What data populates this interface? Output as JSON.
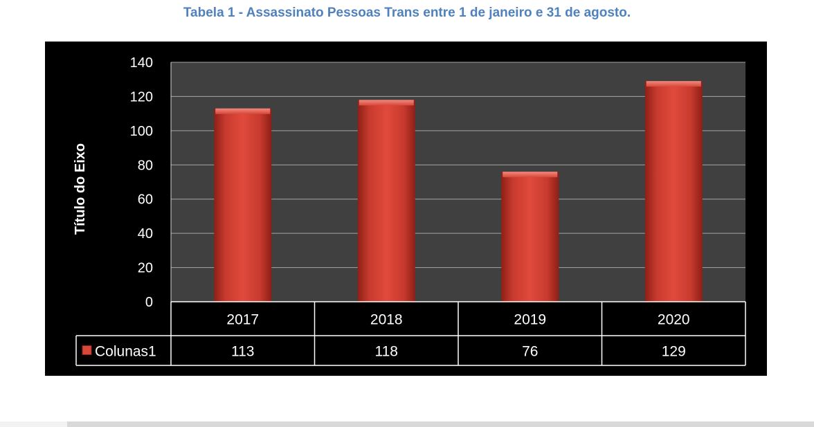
{
  "caption": "Tabela 1 - Assassinato Pessoas Trans entre 1 de janeiro e 31 de agosto.",
  "colors": {
    "caption": "#4f81bd",
    "bar": "#c0392b",
    "background": "#000000",
    "plot_area": "#404040",
    "text": "#ffffff"
  },
  "chart_data": {
    "type": "bar",
    "title": "",
    "xlabel": "",
    "ylabel": "Título do Eixo",
    "categories": [
      "2017",
      "2018",
      "2019",
      "2020"
    ],
    "series": [
      {
        "name": "Colunas1",
        "values": [
          113,
          118,
          76,
          129
        ]
      }
    ],
    "ylim": [
      0,
      140
    ],
    "yticks": [
      0,
      20,
      40,
      60,
      80,
      100,
      120,
      140
    ],
    "grid": true,
    "legend": "data-table-left",
    "data_table": true
  }
}
